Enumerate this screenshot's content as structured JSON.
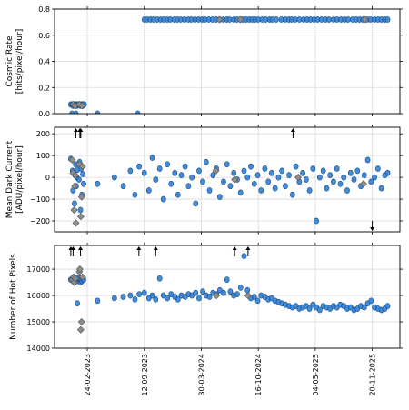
{
  "chart_data": [
    {
      "type": "scatter",
      "ylabel": "Cosmic Rate\n[hits/pixel/hour]",
      "ylim": [
        0.0,
        0.8
      ],
      "yticks": [
        0.0,
        0.2,
        0.4,
        0.6,
        0.8
      ],
      "ytick_labels": [
        "0.0",
        "0.2",
        "0.4",
        "0.6",
        "0.8"
      ],
      "grid": true,
      "series": [
        {
          "marker": "circle",
          "color": "#2f7fd6",
          "x_text": [
            "2023-09-12",
            "2023-09-21",
            "2023-10-03",
            "2023-10-14",
            "2023-10-27",
            "2023-11-08",
            "2023-11-19",
            "2023-12-01",
            "2023-12-12",
            "2023-12-26",
            "2024-01-06",
            "2024-01-18",
            "2024-01-31",
            "2024-02-13",
            "2024-02-24",
            "2024-03-08",
            "2024-03-21",
            "2024-04-02",
            "2024-04-12",
            "2024-04-25",
            "2024-05-08",
            "2024-05-21",
            "2024-06-02",
            "2024-06-15",
            "2024-06-27",
            "2024-07-07",
            "2024-07-22",
            "2024-08-02",
            "2024-08-14",
            "2024-08-23",
            "2024-09-03",
            "2024-09-14",
            "2024-09-24",
            "2024-10-05",
            "2024-10-16",
            "2024-10-30",
            "2024-11-11",
            "2024-11-25",
            "2024-12-04",
            "2024-12-18",
            "2025-01-05",
            "2025-01-18",
            "2025-01-31",
            "2025-02-10",
            "2025-02-22",
            "2025-03-09",
            "2025-03-24",
            "2025-04-05",
            "2025-04-17",
            "2025-04-30",
            "2025-05-12",
            "2025-05-26",
            "2025-06-09",
            "2025-06-21",
            "2025-07-07",
            "2025-07-19",
            "2025-08-02",
            "2025-08-15",
            "2025-08-27",
            "2025-09-12",
            "2025-09-24",
            "2025-10-06",
            "2025-10-18",
            "2025-11-02",
            "2025-11-14",
            "2025-11-28",
            "2025-12-10",
            "2025-12-22",
            "2026-01-03",
            "2026-01-13"
          ],
          "y": 0.72
        },
        {
          "marker": "circle",
          "color": "#2f7fd6",
          "x": [
            "2022-12-28",
            "2023-01-02",
            "2023-01-05",
            "2023-01-08",
            "2023-01-10",
            "2023-01-12",
            "2023-01-14",
            "2023-01-16",
            "2023-01-18",
            "2023-01-20",
            "2023-01-25",
            "2023-01-28",
            "2023-01-31",
            "2023-02-02",
            "2023-02-05",
            "2023-02-08",
            "2023-02-10",
            "2023-02-13"
          ],
          "y": [
            0.07,
            0.07,
            0.06,
            0.07,
            0.07,
            0.06,
            0.07,
            0.07,
            0.06,
            0.07,
            0.07,
            0.07,
            0.06,
            0.07,
            0.07,
            0.06,
            0.07,
            0.07
          ]
        },
        {
          "marker": "circle",
          "color": "#2f7fd6",
          "x": [
            "2023-01-01",
            "2023-01-15",
            "2023-04-01",
            "2023-08-20"
          ],
          "y": [
            0.0,
            0.0,
            0.0,
            0.0
          ]
        },
        {
          "marker": "diamond",
          "color": "#8c8c8c",
          "x": [
            "2023-01-06",
            "2023-01-12",
            "2023-01-27",
            "2023-02-06",
            "2024-06-02",
            "2024-08-14",
            "2025-10-25"
          ],
          "y": [
            0.07,
            0.06,
            0.07,
            0.06,
            0.72,
            0.72,
            0.72
          ]
        }
      ]
    },
    {
      "type": "scatter",
      "ylabel": "Mean Dark Current\n[ADU/pixel/hour]",
      "ylim": [
        -250,
        230
      ],
      "yticks": [
        -200,
        -100,
        0,
        100,
        200
      ],
      "ytick_labels": [
        "−200",
        "−100",
        "0",
        "100",
        "200"
      ],
      "grid": true,
      "series": [
        {
          "marker": "circle",
          "color": "#2f7fd6",
          "x": [
            "2022-12-28",
            "2023-01-03",
            "2023-01-05",
            "2023-01-08",
            "2023-01-10",
            "2023-01-12",
            "2023-01-14",
            "2023-01-16",
            "2023-01-18",
            "2023-01-20",
            "2023-01-26",
            "2023-01-28",
            "2023-01-31",
            "2023-02-02",
            "2023-02-05",
            "2023-02-08",
            "2023-02-11",
            "2023-04-01",
            "2023-05-30",
            "2023-06-30",
            "2023-07-25",
            "2023-08-10",
            "2023-08-25",
            "2023-09-12",
            "2023-09-28",
            "2023-10-10",
            "2023-10-22",
            "2023-11-05",
            "2023-11-18",
            "2023-12-02",
            "2023-12-15",
            "2023-12-28",
            "2024-01-08",
            "2024-01-20",
            "2024-02-02",
            "2024-02-14",
            "2024-02-26",
            "2024-03-10",
            "2024-03-22",
            "2024-04-04",
            "2024-04-16",
            "2024-04-28",
            "2024-05-10",
            "2024-05-22",
            "2024-06-03",
            "2024-06-16",
            "2024-06-28",
            "2024-07-10",
            "2024-07-22",
            "2024-08-03",
            "2024-08-15",
            "2024-08-27",
            "2024-09-08",
            "2024-09-20",
            "2024-10-02",
            "2024-10-14",
            "2024-10-26",
            "2024-11-08",
            "2024-11-20",
            "2024-12-02",
            "2024-12-14",
            "2024-12-26",
            "2025-01-07",
            "2025-01-19",
            "2025-02-01",
            "2025-02-13",
            "2025-02-25",
            "2025-03-09",
            "2025-03-21",
            "2025-04-02",
            "2025-04-14",
            "2025-04-26",
            "2025-05-08",
            "2025-05-20",
            "2025-06-01",
            "2025-06-13",
            "2025-06-25",
            "2025-07-07",
            "2025-07-19",
            "2025-07-31",
            "2025-08-12",
            "2025-08-24",
            "2025-09-05",
            "2025-09-17",
            "2025-09-29",
            "2025-10-11",
            "2025-10-23",
            "2025-11-04",
            "2025-11-16",
            "2025-11-28",
            "2025-12-10",
            "2025-12-22",
            "2026-01-03",
            "2026-01-13"
          ],
          "y": [
            85,
            30,
            -60,
            20,
            -120,
            10,
            60,
            -40,
            0,
            35,
            -10,
            70,
            -150,
            40,
            -80,
            15,
            -30,
            -30,
            0,
            -40,
            30,
            -80,
            50,
            20,
            -60,
            90,
            -10,
            40,
            -100,
            60,
            -30,
            20,
            -80,
            10,
            50,
            -40,
            0,
            -120,
            30,
            -20,
            70,
            -60,
            10,
            40,
            -90,
            -20,
            60,
            -40,
            20,
            -10,
            -70,
            30,
            0,
            50,
            -30,
            10,
            -60,
            40,
            -20,
            20,
            -50,
            0,
            30,
            -40,
            10,
            -80,
            50,
            -20,
            20,
            -10,
            -60,
            40,
            -200,
            0,
            30,
            -50,
            10,
            -20,
            40,
            -30,
            0,
            -60,
            20,
            -10,
            30,
            -40,
            10,
            80,
            -20,
            0,
            40,
            -50,
            10,
            20
          ]
        },
        {
          "marker": "diamond",
          "color": "#8c8c8c",
          "x": [
            "2023-01-02",
            "2023-01-05",
            "2023-01-09",
            "2023-01-11",
            "2023-01-13",
            "2023-01-15",
            "2023-01-27",
            "2023-02-01",
            "2023-02-04",
            "2023-02-07",
            "2024-05-20",
            "2024-07-25",
            "2025-03-05",
            "2025-10-20"
          ],
          "y": [
            80,
            20,
            -150,
            -40,
            10,
            -210,
            60,
            -180,
            -90,
            50,
            30,
            -10,
            0,
            -30
          ]
        }
      ],
      "annotations": [
        {
          "symbol": "arrow-up",
          "x": "2023-01-15",
          "y": 230
        },
        {
          "symbol": "arrow-up",
          "x": "2023-01-29",
          "y": 230
        },
        {
          "symbol": "arrow-up",
          "x": "2023-02-01",
          "y": 230
        },
        {
          "symbol": "arrow-up",
          "x": "2025-02-15",
          "y": 230
        },
        {
          "symbol": "arrow-down",
          "x": "2025-11-20",
          "y": -250
        }
      ]
    },
    {
      "type": "scatter",
      "ylabel": "Number of Hot Pixels",
      "ylim": [
        14000,
        17900
      ],
      "yticks": [
        14000,
        15000,
        16000,
        17000
      ],
      "ytick_labels": [
        "14000",
        "15000",
        "16000",
        "17000"
      ],
      "xticks": [
        "2023-02-24",
        "2023-09-12",
        "2024-03-30",
        "2024-10-16",
        "2025-05-04",
        "2025-11-20"
      ],
      "xtick_labels": [
        "24-02-2023",
        "12-09-2023",
        "30-03-2024",
        "16-10-2024",
        "04-05-2025",
        "20-11-2025"
      ],
      "xlim": [
        "2022-11-01",
        "2026-02-25"
      ],
      "grid": true,
      "series": [
        {
          "marker": "circle",
          "color": "#2f7fd6",
          "x": [
            "2022-12-28",
            "2023-01-03",
            "2023-01-05",
            "2023-01-08",
            "2023-01-10",
            "2023-01-12",
            "2023-01-14",
            "2023-01-16",
            "2023-01-18",
            "2023-01-20",
            "2023-01-26",
            "2023-01-28",
            "2023-01-31",
            "2023-02-02",
            "2023-02-05",
            "2023-02-08",
            "2023-02-11",
            "2023-04-01",
            "2023-05-30",
            "2023-06-30",
            "2023-07-25",
            "2023-08-10",
            "2023-08-25",
            "2023-09-12",
            "2023-09-28",
            "2023-10-10",
            "2023-10-22",
            "2023-11-05",
            "2023-11-18",
            "2023-12-02",
            "2023-12-15",
            "2023-12-28",
            "2024-01-08",
            "2024-01-20",
            "2024-02-02",
            "2024-02-14",
            "2024-02-26",
            "2024-03-10",
            "2024-03-22",
            "2024-04-04",
            "2024-04-16",
            "2024-04-28",
            "2024-05-10",
            "2024-05-22",
            "2024-06-03",
            "2024-06-16",
            "2024-06-28",
            "2024-07-10",
            "2024-07-22",
            "2024-08-03",
            "2024-08-15",
            "2024-08-27",
            "2024-09-08",
            "2024-09-20",
            "2024-10-02",
            "2024-10-14",
            "2024-10-26",
            "2024-11-08",
            "2024-11-20",
            "2024-12-02",
            "2024-12-14",
            "2024-12-26",
            "2025-01-07",
            "2025-01-19",
            "2025-02-01",
            "2025-02-13",
            "2025-02-25",
            "2025-03-09",
            "2025-03-21",
            "2025-04-02",
            "2025-04-14",
            "2025-04-26",
            "2025-05-08",
            "2025-05-20",
            "2025-06-01",
            "2025-06-13",
            "2025-06-25",
            "2025-07-07",
            "2025-07-19",
            "2025-07-31",
            "2025-08-12",
            "2025-08-24",
            "2025-09-05",
            "2025-09-17",
            "2025-09-29",
            "2025-10-11",
            "2025-10-23",
            "2025-11-04",
            "2025-11-16",
            "2025-11-28",
            "2025-12-10",
            "2025-12-22",
            "2026-01-03",
            "2026-01-13"
          ],
          "y": [
            16600,
            16650,
            16550,
            16700,
            16500,
            16620,
            16580,
            16680,
            16550,
            15700,
            16600,
            16650,
            16500,
            16620,
            16550,
            16680,
            16600,
            15800,
            15900,
            15950,
            16000,
            15850,
            16050,
            16100,
            15900,
            16000,
            15850,
            16650,
            16000,
            15900,
            16050,
            15950,
            15850,
            16000,
            15950,
            16050,
            16000,
            16100,
            15900,
            16150,
            16000,
            15950,
            16100,
            16050,
            16200,
            16100,
            16600,
            16150,
            16000,
            16050,
            16300,
            17500,
            16200,
            15900,
            15950,
            15800,
            16000,
            15950,
            15850,
            15900,
            15800,
            15750,
            15700,
            15650,
            15600,
            15550,
            15600,
            15500,
            15550,
            15600,
            15500,
            15650,
            15550,
            15450,
            15600,
            15550,
            15500,
            15600,
            15550,
            15650,
            15600,
            15500,
            15550,
            15450,
            15500,
            15600,
            15550,
            15700,
            15800,
            15550,
            15500,
            15450,
            15500,
            15600
          ]
        },
        {
          "marker": "diamond",
          "color": "#8c8c8c",
          "x": [
            "2023-01-03",
            "2023-01-06",
            "2023-01-09",
            "2023-01-13",
            "2023-01-27",
            "2023-01-29",
            "2023-02-01",
            "2023-02-04",
            "2023-02-07",
            "2024-05-22",
            "2024-09-10"
          ],
          "y": [
            16600,
            16700,
            16500,
            16650,
            16900,
            17000,
            14700,
            15000,
            16700,
            16000,
            16000
          ]
        }
      ],
      "annotations": [
        {
          "symbol": "arrow-up",
          "x": "2022-12-28",
          "y": 17900
        },
        {
          "symbol": "arrow-up",
          "x": "2023-01-05",
          "y": 17900
        },
        {
          "symbol": "arrow-up",
          "x": "2023-01-31",
          "y": 17900
        },
        {
          "symbol": "arrow-up",
          "x": "2023-08-24",
          "y": 17900
        },
        {
          "symbol": "arrow-up",
          "x": "2023-10-22",
          "y": 17900
        },
        {
          "symbol": "arrow-up",
          "x": "2024-07-25",
          "y": 17900
        },
        {
          "symbol": "arrow-up",
          "x": "2024-09-10",
          "y": 17900
        }
      ]
    }
  ],
  "colors": {
    "point_fill": "#2f7fd6",
    "point_edge": "#1c4f86",
    "diamond_fill": "#8c8c8c",
    "diamond_edge": "#555555",
    "grid": "#d9d9d9"
  }
}
